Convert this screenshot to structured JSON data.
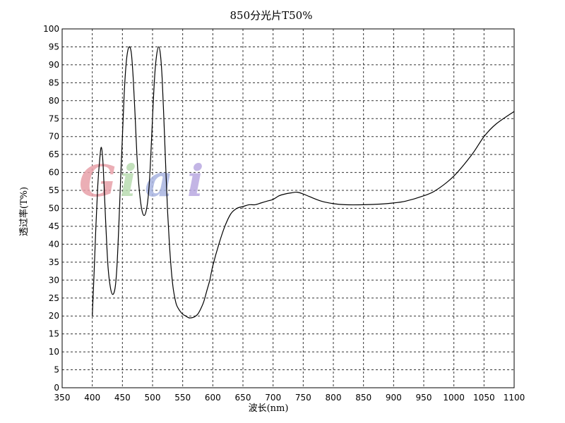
{
  "chart_data": {
    "type": "line",
    "title": "850分光片T50%",
    "xlabel": "波长(nm)",
    "ylabel": "透过率(T%)",
    "xlim": [
      350,
      1100
    ],
    "ylim": [
      0,
      100
    ],
    "x_ticks": [
      350,
      400,
      450,
      500,
      550,
      600,
      650,
      700,
      750,
      800,
      850,
      900,
      950,
      1000,
      1050,
      1100
    ],
    "y_ticks": [
      0,
      5,
      10,
      15,
      20,
      25,
      30,
      35,
      40,
      45,
      50,
      55,
      60,
      65,
      70,
      75,
      80,
      85,
      90,
      95,
      100
    ],
    "grid": true,
    "grid_style": "dashed",
    "line_color": "#000000",
    "watermark": {
      "text": "Giai",
      "letters": [
        "G",
        "i",
        "a",
        "i"
      ],
      "colors": [
        "#e8a0a8",
        "#b8dcb0",
        "#a8b4e0",
        "#b8a8e0"
      ]
    },
    "series": [
      {
        "x": [
          400,
          403,
          406,
          409,
          412,
          415,
          418,
          422,
          426,
          430,
          434,
          438,
          441,
          444,
          447,
          450,
          453,
          456,
          459,
          462,
          465,
          468,
          471,
          474,
          477,
          480,
          483,
          486,
          489,
          492,
          495,
          498,
          501,
          504,
          507,
          510,
          513,
          516,
          519,
          522,
          525,
          528,
          531,
          534,
          537,
          540,
          545,
          550,
          555,
          560,
          565,
          570,
          575,
          580,
          585,
          590,
          595,
          600,
          610,
          620,
          630,
          640,
          650,
          660,
          670,
          680,
          690,
          700,
          710,
          720,
          730,
          740,
          750,
          760,
          780,
          800,
          820,
          850,
          880,
          900,
          920,
          950,
          970,
          1000,
          1030,
          1050,
          1070,
          1100
        ],
        "y": [
          20,
          32,
          45,
          56,
          63,
          67,
          62,
          47,
          34,
          28,
          26,
          28,
          34,
          45,
          58,
          70,
          82,
          90,
          94,
          95,
          93,
          86,
          76,
          65,
          57,
          52,
          49,
          48,
          49,
          52,
          58,
          68,
          79,
          88,
          93,
          95,
          93,
          86,
          74,
          61,
          49,
          40,
          33,
          28,
          25,
          23,
          21.5,
          20.5,
          20,
          19.5,
          19.5,
          19.8,
          20.5,
          22,
          24,
          27,
          30,
          34,
          40,
          45,
          48.5,
          50,
          50.5,
          51,
          51,
          51.5,
          52,
          52.5,
          53.5,
          54,
          54.3,
          54.5,
          54,
          53.3,
          52,
          51.3,
          51,
          51,
          51.2,
          51.5,
          52,
          53.5,
          55,
          59,
          65,
          70,
          73.5,
          77
        ]
      }
    ]
  }
}
